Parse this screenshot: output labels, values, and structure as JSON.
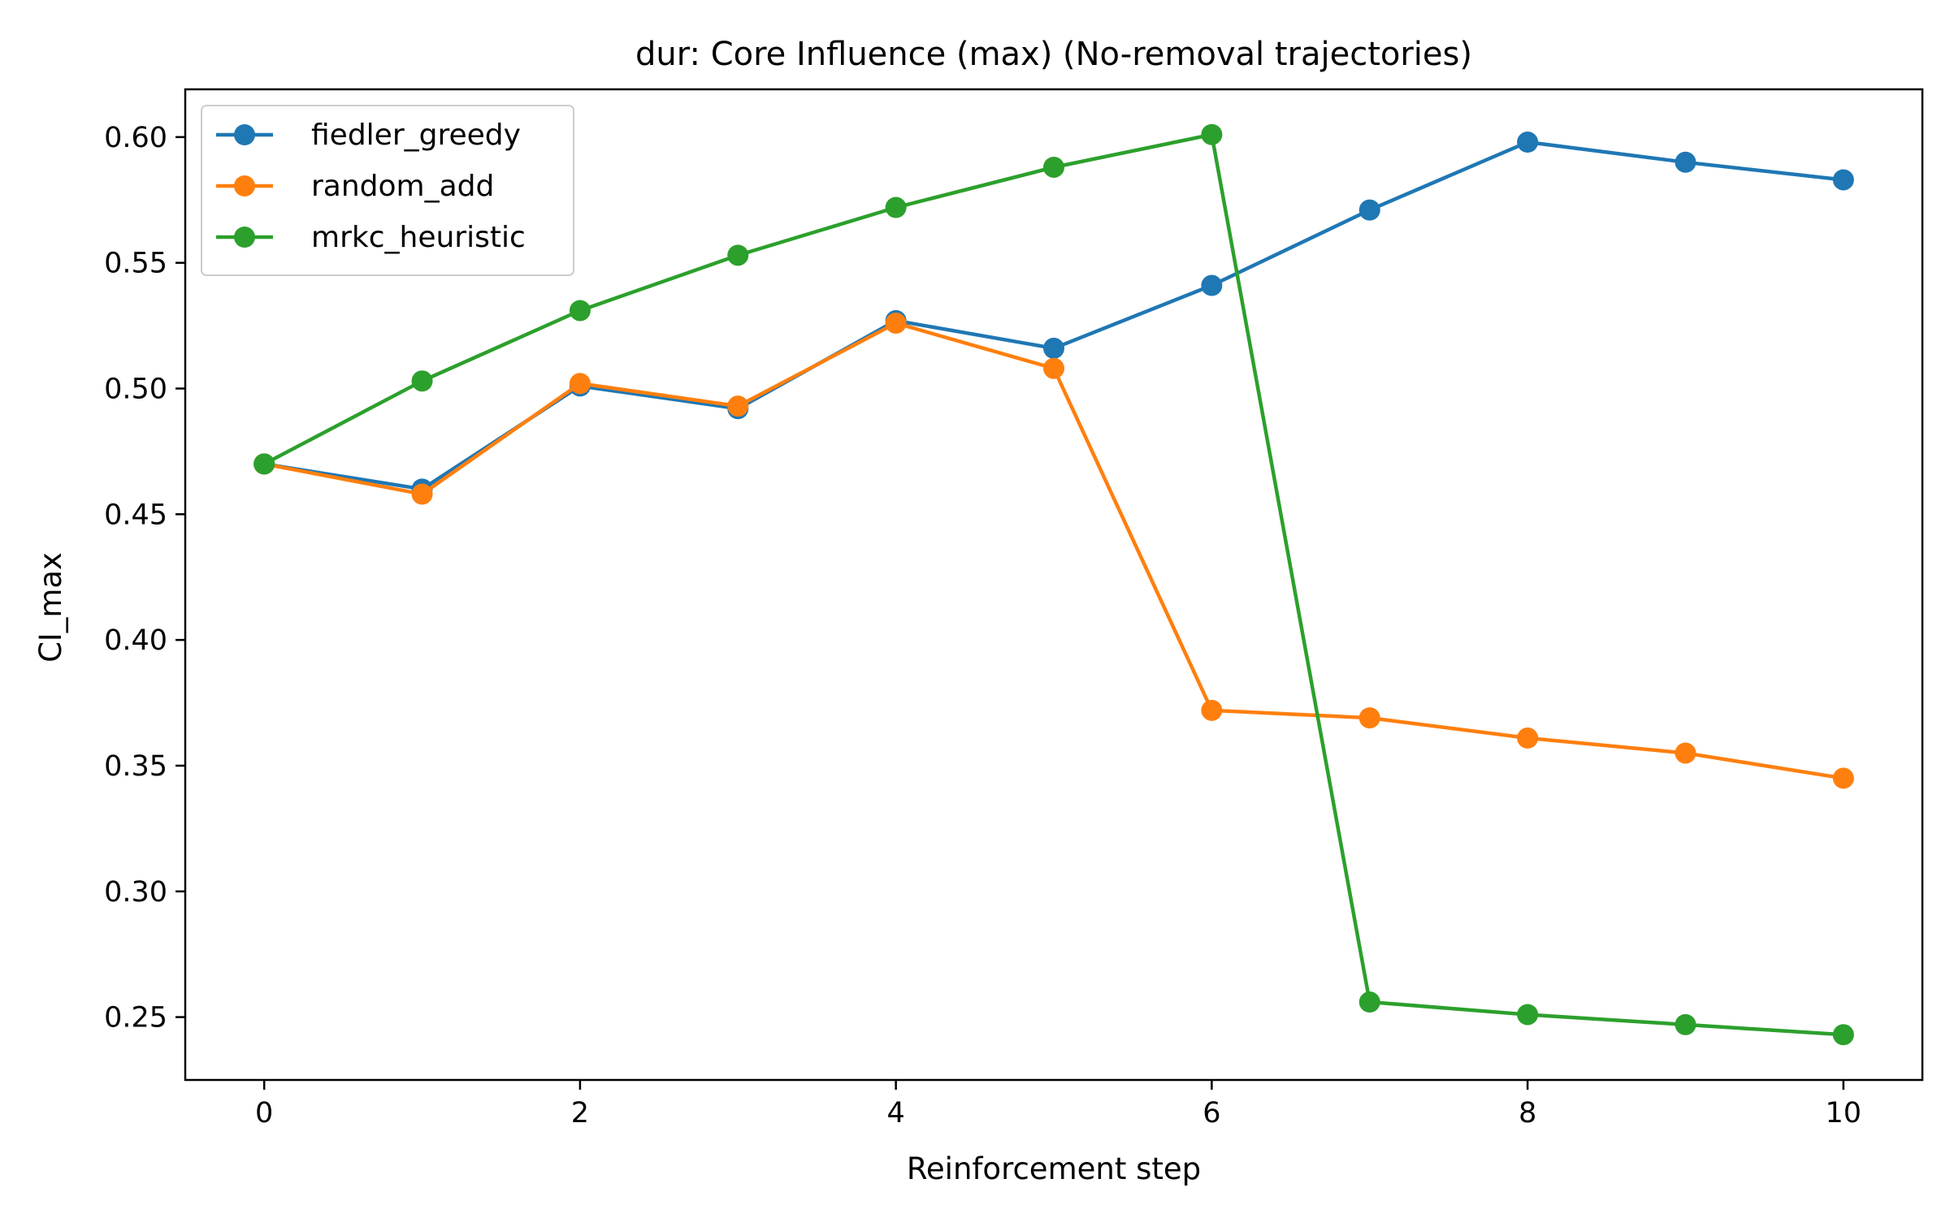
{
  "chart_data": {
    "type": "line",
    "title": "dur: Core Influence (max) (No-removal trajectories)",
    "xlabel": "Reinforcement step",
    "ylabel": "CI_max",
    "xlim": [
      -0.5,
      10.5
    ],
    "ylim": [
      0.225,
      0.619
    ],
    "xticks": [
      0,
      2,
      4,
      6,
      8,
      10
    ],
    "xtick_labels": [
      "0",
      "2",
      "4",
      "6",
      "8",
      "10"
    ],
    "yticks": [
      0.25,
      0.3,
      0.35,
      0.4,
      0.45,
      0.5,
      0.55,
      0.6
    ],
    "ytick_labels": [
      "0.25",
      "0.30",
      "0.35",
      "0.40",
      "0.45",
      "0.50",
      "0.55",
      "0.60"
    ],
    "grid": false,
    "legend_position": "top-left",
    "x": [
      0,
      1,
      2,
      3,
      4,
      5,
      6,
      7,
      8,
      9,
      10
    ],
    "series": [
      {
        "name": "fiedler_greedy",
        "color": "#1f77b4",
        "values": [
          0.47,
          0.46,
          0.501,
          0.492,
          0.527,
          0.516,
          0.541,
          0.571,
          0.598,
          0.59,
          0.583
        ]
      },
      {
        "name": "random_add",
        "color": "#ff7f0e",
        "values": [
          0.47,
          0.458,
          0.502,
          0.493,
          0.526,
          0.508,
          0.372,
          0.369,
          0.361,
          0.355,
          0.345
        ]
      },
      {
        "name": "mrkc_heuristic",
        "color": "#2ca02c",
        "values": [
          0.47,
          0.503,
          0.531,
          0.553,
          0.572,
          0.588,
          0.601,
          0.256,
          0.251,
          0.247,
          0.243
        ]
      }
    ]
  }
}
